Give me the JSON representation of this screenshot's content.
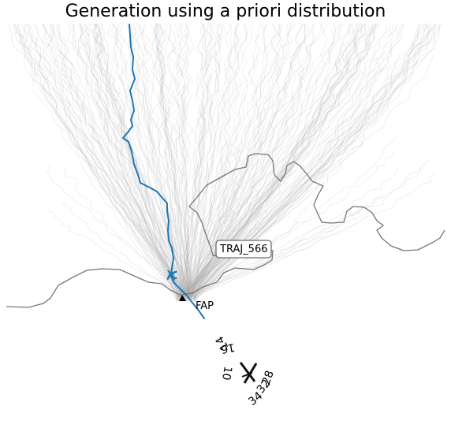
{
  "title": "Generation using a priori distribution",
  "flight_label": "TRAJ_566",
  "waypoint_label": "FAP",
  "runway_labels": [
    "16",
    "10",
    "34",
    "32",
    "28",
    "14"
  ],
  "colors": {
    "background_traces": "#a9a9a9",
    "highlight_trajectory": "#1f77b4",
    "coastline": "#777777",
    "runway": "#111111"
  },
  "icons": [
    "aircraft-icon",
    "triangle-waypoint-icon"
  ]
}
